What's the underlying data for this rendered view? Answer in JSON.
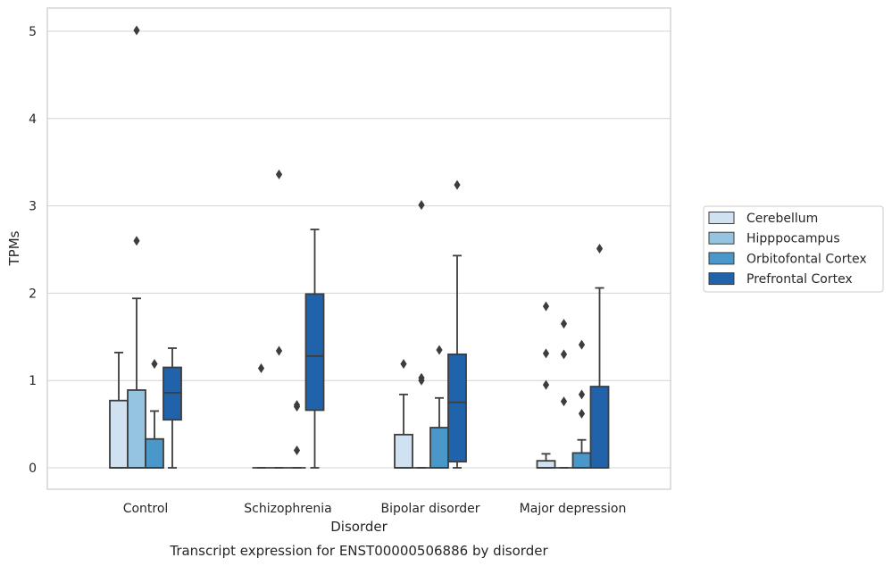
{
  "chart_data": {
    "type": "box",
    "xlabel": "Disorder",
    "ylabel": "TPMs",
    "caption": "Transcript expression for ENST00000506886 by disorder",
    "ylim": [
      -0.25,
      5.27
    ],
    "yticks": [
      0,
      1,
      2,
      3,
      4,
      5
    ],
    "grid": "horizontal",
    "legend_position": "right",
    "categories": [
      "Control",
      "Schizophrenia",
      "Bipolar disorder",
      "Major depression"
    ],
    "series": [
      {
        "name": "Cerebellum",
        "color": "#d0e1f2",
        "boxes": [
          {
            "whislo": 0,
            "q1": 0,
            "med": 0,
            "q3": 0.77,
            "whishi": 1.32,
            "fliers": []
          },
          {
            "whislo": 0,
            "q1": 0,
            "med": 0,
            "q3": 0,
            "whishi": 0,
            "fliers": [
              1.14
            ]
          },
          {
            "whislo": 0,
            "q1": 0,
            "med": 0,
            "q3": 0.38,
            "whishi": 0.84,
            "fliers": [
              1.19
            ]
          },
          {
            "whislo": 0,
            "q1": 0,
            "med": 0,
            "q3": 0.08,
            "whishi": 0.16,
            "fliers": [
              0.95,
              1.31,
              1.85
            ]
          }
        ]
      },
      {
        "name": "Hipppocampus",
        "color": "#94c4df",
        "boxes": [
          {
            "whislo": 0,
            "q1": 0,
            "med": 0,
            "q3": 0.89,
            "whishi": 1.94,
            "fliers": [
              2.6,
              5.01
            ]
          },
          {
            "whislo": 0,
            "q1": 0,
            "med": 0,
            "q3": 0,
            "whishi": 0,
            "fliers": [
              1.34,
              3.36
            ]
          },
          {
            "whislo": 0,
            "q1": 0,
            "med": 0,
            "q3": 0,
            "whishi": 0,
            "fliers": [
              1.0,
              1.03,
              3.01
            ]
          },
          {
            "whislo": 0,
            "q1": 0,
            "med": 0,
            "q3": 0,
            "whishi": 0,
            "fliers": [
              0.76,
              1.3,
              1.65
            ]
          }
        ]
      },
      {
        "name": "Orbitofontal Cortex",
        "color": "#4a98c9",
        "boxes": [
          {
            "whislo": 0,
            "q1": 0,
            "med": 0,
            "q3": 0.33,
            "whishi": 0.65,
            "fliers": [
              1.19
            ]
          },
          {
            "whislo": 0,
            "q1": 0,
            "med": 0,
            "q3": 0,
            "whishi": 0,
            "fliers": [
              0.2,
              0.7,
              0.72
            ]
          },
          {
            "whislo": 0,
            "q1": 0,
            "med": 0,
            "q3": 0.46,
            "whishi": 0.8,
            "fliers": [
              1.35
            ]
          },
          {
            "whislo": 0,
            "q1": 0,
            "med": 0,
            "q3": 0.17,
            "whishi": 0.32,
            "fliers": [
              0.62,
              0.84,
              1.41
            ]
          }
        ]
      },
      {
        "name": "Prefrontal Cortex",
        "color": "#2163aa",
        "boxes": [
          {
            "whislo": 0,
            "q1": 0.55,
            "med": 0.86,
            "q3": 1.15,
            "whishi": 1.37,
            "fliers": []
          },
          {
            "whislo": 0,
            "q1": 0.66,
            "med": 1.28,
            "q3": 1.99,
            "whishi": 2.73,
            "fliers": []
          },
          {
            "whislo": 0,
            "q1": 0.07,
            "med": 0.75,
            "q3": 1.3,
            "whishi": 2.43,
            "fliers": [
              3.24
            ]
          },
          {
            "whislo": 0,
            "q1": 0,
            "med": 0,
            "q3": 0.93,
            "whishi": 2.06,
            "fliers": [
              2.51
            ]
          }
        ]
      }
    ]
  }
}
